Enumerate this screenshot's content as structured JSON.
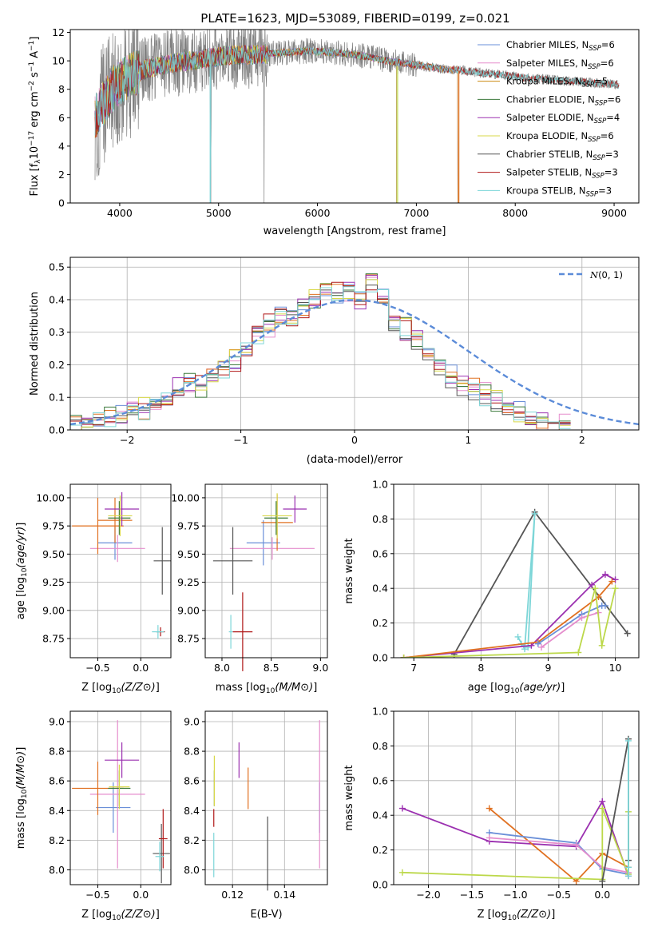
{
  "figure_title": "PLATE=1623, MJD=53089, FIBERID=0199, z=0.021",
  "colors": {
    "Chabrier MILES": "#6a8fd8",
    "Salpeter MILES": "#e58ecd",
    "Kroupa MILES": "#cc8a10",
    "Chabrier ELODIE": "#3c7a3c",
    "Salpeter ELODIE": "#9b30b0",
    "Kroupa ELODIE": "#d8d84a",
    "Chabrier STELIB": "#555555",
    "Salpeter STELIB": "#b01818",
    "Kroupa STELIB": "#7dd6d8",
    "data": "#808080",
    "gaussian": "#5b8bd8",
    "extra_orange": "#e07020",
    "extra_lime": "#bcd84a"
  },
  "chart_data": [
    {
      "id": "spectrum",
      "type": "line",
      "title": "PLATE=1623, MJD=53089, FIBERID=0199, z=0.021",
      "xlabel": "wavelength [Angstrom, rest frame]",
      "ylabel_parts": [
        "Flux [f",
        "λ",
        "10",
        "−17",
        " erg cm",
        "−2",
        " s",
        "−1",
        " A",
        "−1",
        "]"
      ],
      "xlim": [
        3500,
        9250
      ],
      "ylim": [
        0,
        12.2
      ],
      "xticks": [
        4000,
        5000,
        6000,
        7000,
        8000,
        9000
      ],
      "yticks": [
        0,
        2,
        4,
        6,
        8,
        10,
        12
      ],
      "continuum": {
        "x": [
          3750,
          3850,
          3950,
          4100,
          4300,
          4500,
          4700,
          4900,
          5100,
          5300,
          5500,
          5700,
          5900,
          6100,
          6300,
          6500,
          6700,
          6900,
          7100,
          7300,
          7500,
          7700,
          7900,
          8100,
          8300,
          8500,
          8700,
          8900,
          9050
        ],
        "y": [
          6.0,
          7.2,
          8.2,
          9.0,
          9.5,
          9.8,
          10.0,
          10.2,
          10.4,
          10.4,
          10.5,
          10.6,
          10.7,
          10.6,
          10.5,
          10.3,
          10.0,
          9.8,
          9.6,
          9.4,
          9.3,
          9.1,
          9.0,
          8.8,
          8.7,
          8.6,
          8.5,
          8.4,
          8.3
        ]
      },
      "legend": [
        {
          "name": "Chabrier MILES",
          "nssp": "6"
        },
        {
          "name": "Salpeter MILES",
          "nssp": "6"
        },
        {
          "name": "Kroupa MILES",
          "nssp": "5"
        },
        {
          "name": "Chabrier ELODIE",
          "nssp": "6"
        },
        {
          "name": "Salpeter ELODIE",
          "nssp": "4"
        },
        {
          "name": "Kroupa ELODIE",
          "nssp": "6"
        },
        {
          "name": "Chabrier STELIB",
          "nssp": "3"
        },
        {
          "name": "Salpeter STELIB",
          "nssp": "3"
        },
        {
          "name": "Kroupa STELIB",
          "nssp": "3"
        }
      ],
      "legend_prefix": "N",
      "legend_sub": "SSP",
      "legend_position": "top-right"
    },
    {
      "id": "residuals",
      "type": "line",
      "xlabel": "(data-model)/error",
      "ylabel": "Normed distribution",
      "xlim": [
        -2.5,
        2.5
      ],
      "ylim": [
        0,
        0.53
      ],
      "xticks": [
        -2,
        -1,
        0,
        1,
        2
      ],
      "yticks": [
        0.0,
        0.1,
        0.2,
        0.3,
        0.4,
        0.5
      ],
      "grid": true,
      "legend": [
        "N(0,1)"
      ],
      "legend_position": "top-right",
      "series_base": [
        0.018,
        0.022,
        0.032,
        0.038,
        0.045,
        0.05,
        0.065,
        0.08,
        0.105,
        0.125,
        0.145,
        0.135,
        0.155,
        0.185,
        0.215,
        0.245,
        0.3,
        0.32,
        0.355,
        0.34,
        0.38,
        0.4,
        0.425,
        0.42,
        0.43,
        0.405,
        0.46,
        0.41,
        0.33,
        0.31,
        0.28,
        0.25,
        0.205,
        0.165,
        0.14,
        0.125,
        0.11,
        0.09,
        0.068,
        0.055,
        0.04,
        0.03,
        0.022,
        0.018
      ],
      "bin_start": -2.5,
      "bin_width": 0.1
    },
    {
      "id": "z_age",
      "type": "scatter",
      "xlabel": "Z [log10(Z/Z⊙)]",
      "ylabel": "age [log10(age/yr)]",
      "xlim": [
        -0.82,
        0.35
      ],
      "ylim": [
        8.58,
        10.12
      ],
      "xticks": [
        -0.5,
        0.0
      ],
      "yticks": [
        8.75,
        9.0,
        9.25,
        9.5,
        9.75,
        10.0
      ],
      "points": [
        {
          "model": "Chabrier MILES",
          "x": -0.3,
          "y": 9.6,
          "xerr": 0.2,
          "yerr": 0.15
        },
        {
          "model": "Salpeter MILES",
          "x": -0.27,
          "y": 9.55,
          "xerr": 0.32,
          "yerr": 0.12
        },
        {
          "model": "extra_orange",
          "x": -0.5,
          "y": 9.75,
          "xerr": 0.3,
          "yerr": 0.25
        },
        {
          "model": "extra_orange",
          "x": -0.3,
          "y": 9.8,
          "xerr": 0.2,
          "yerr": 0.2
        },
        {
          "model": "Chabrier ELODIE",
          "x": -0.25,
          "y": 9.82,
          "xerr": 0.13,
          "yerr": 0.15
        },
        {
          "model": "Salpeter ELODIE",
          "x": -0.22,
          "y": 9.9,
          "xerr": 0.2,
          "yerr": 0.15
        },
        {
          "model": "Kroupa ELODIE",
          "x": -0.24,
          "y": 9.84,
          "xerr": 0.14,
          "yerr": 0.18
        },
        {
          "model": "Chabrier STELIB",
          "x": 0.25,
          "y": 9.44,
          "xerr": 0.1,
          "yerr": 0.3
        },
        {
          "model": "Salpeter STELIB",
          "x": 0.23,
          "y": 8.81,
          "xerr": 0.05,
          "yerr": 0.04
        },
        {
          "model": "Kroupa STELIB",
          "x": 0.2,
          "y": 8.81,
          "xerr": 0.07,
          "yerr": 0.06
        }
      ]
    },
    {
      "id": "mass_age",
      "type": "scatter",
      "xlabel": "mass [log10(M/M⊙)]",
      "ylabel": "",
      "xlim": [
        7.83,
        9.07
      ],
      "ylim": [
        8.58,
        10.12
      ],
      "xticks": [
        8.0,
        8.5,
        9.0
      ],
      "yticks": [
        8.75,
        9.0,
        9.25,
        9.5,
        9.75,
        10.0
      ],
      "points": [
        {
          "model": "Chabrier MILES",
          "x": 8.42,
          "y": 9.6,
          "xerr": 0.17,
          "yerr": 0.2
        },
        {
          "model": "Salpeter MILES",
          "x": 8.51,
          "y": 9.55,
          "xerr": 0.43,
          "yerr": 0.1
        },
        {
          "model": "extra_orange",
          "x": 8.56,
          "y": 9.78,
          "xerr": 0.16,
          "yerr": 0.25
        },
        {
          "model": "Chabrier ELODIE",
          "x": 8.55,
          "y": 9.82,
          "xerr": 0.12,
          "yerr": 0.15
        },
        {
          "model": "Salpeter ELODIE",
          "x": 8.74,
          "y": 9.9,
          "xerr": 0.12,
          "yerr": 0.12
        },
        {
          "model": "Kroupa ELODIE",
          "x": 8.56,
          "y": 9.84,
          "xerr": 0.15,
          "yerr": 0.2
        },
        {
          "model": "Chabrier STELIB",
          "x": 8.11,
          "y": 9.44,
          "xerr": 0.2,
          "yerr": 0.3
        },
        {
          "model": "Salpeter STELIB",
          "x": 8.21,
          "y": 8.81,
          "xerr": 0.1,
          "yerr": 0.35
        },
        {
          "model": "Kroupa STELIB",
          "x": 8.09,
          "y": 8.81,
          "xerr": 0.02,
          "yerr": 0.15
        }
      ]
    },
    {
      "id": "age_weight",
      "type": "line",
      "xlabel": "age [log10(age/yr)]",
      "ylabel": "mass weight",
      "xlim": [
        6.7,
        10.35
      ],
      "ylim": [
        0,
        1.0
      ],
      "xticks": [
        7,
        8,
        9,
        10
      ],
      "yticks": [
        0.0,
        0.2,
        0.4,
        0.6,
        0.8,
        1.0
      ],
      "grid": true,
      "series": [
        {
          "model": "Chabrier STELIB",
          "x": [
            7.6,
            8.8,
            10.18
          ],
          "y": [
            0.02,
            0.84,
            0.14
          ]
        },
        {
          "model": "Kroupa STELIB",
          "x": [
            8.55,
            8.65,
            8.8,
            8.7,
            8.6
          ],
          "y": [
            0.12,
            0.05,
            0.83,
            0.06,
            0.08
          ]
        },
        {
          "model": "Salpeter ELODIE",
          "x": [
            6.85,
            8.75,
            9.65,
            9.85,
            10.0
          ],
          "y": [
            0.0,
            0.07,
            0.42,
            0.48,
            0.45
          ]
        },
        {
          "model": "extra_orange",
          "x": [
            6.85,
            8.85,
            9.75,
            9.95
          ],
          "y": [
            0.0,
            0.09,
            0.35,
            0.44
          ]
        },
        {
          "model": "Chabrier MILES",
          "x": [
            8.85,
            9.5,
            9.8,
            9.85
          ],
          "y": [
            0.08,
            0.25,
            0.3,
            0.3
          ]
        },
        {
          "model": "Salpeter MILES",
          "x": [
            8.9,
            9.5,
            9.75
          ],
          "y": [
            0.06,
            0.23,
            0.26
          ]
        },
        {
          "model": "extra_lime",
          "x": [
            6.85,
            9.45,
            9.7,
            9.8,
            10.0
          ],
          "y": [
            0.0,
            0.03,
            0.4,
            0.07,
            0.4
          ]
        }
      ]
    },
    {
      "id": "z_mass",
      "type": "scatter",
      "xlabel": "Z [log10(Z/Z⊙)]",
      "ylabel": "mass [log10(M/M⊙)]",
      "xlim": [
        -0.82,
        0.35
      ],
      "ylim": [
        7.9,
        9.07
      ],
      "xticks": [
        -0.5,
        0.0
      ],
      "yticks": [
        8.0,
        8.2,
        8.4,
        8.6,
        8.8,
        9.0
      ],
      "points": [
        {
          "model": "Chabrier MILES",
          "x": -0.32,
          "y": 8.42,
          "xerr": 0.2,
          "yerr": 0.17
        },
        {
          "model": "Salpeter MILES",
          "x": -0.27,
          "y": 8.51,
          "xerr": 0.32,
          "yerr": 0.5
        },
        {
          "model": "extra_orange",
          "x": -0.5,
          "y": 8.55,
          "xerr": 0.3,
          "yerr": 0.18
        },
        {
          "model": "Chabrier ELODIE",
          "x": -0.25,
          "y": 8.55,
          "xerr": 0.13,
          "yerr": 0.12
        },
        {
          "model": "Salpeter ELODIE",
          "x": -0.22,
          "y": 8.74,
          "xerr": 0.2,
          "yerr": 0.12
        },
        {
          "model": "Kroupa ELODIE",
          "x": -0.25,
          "y": 8.56,
          "xerr": 0.12,
          "yerr": 0.15
        },
        {
          "model": "Chabrier STELIB",
          "x": 0.24,
          "y": 8.11,
          "xerr": 0.1,
          "yerr": 0.2
        },
        {
          "model": "Salpeter STELIB",
          "x": 0.26,
          "y": 8.21,
          "xerr": 0.05,
          "yerr": 0.2
        },
        {
          "model": "Kroupa STELIB",
          "x": 0.22,
          "y": 8.09,
          "xerr": 0.05,
          "yerr": 0.1
        }
      ]
    },
    {
      "id": "ebv_mass",
      "type": "scatter",
      "xlabel": "E(B-V)",
      "ylabel": "",
      "xlim": [
        0.1095,
        0.1565
      ],
      "ylim": [
        7.9,
        9.07
      ],
      "xticks": [
        0.12,
        0.14
      ],
      "yticks": [
        8.0,
        8.2,
        8.4,
        8.6,
        8.8,
        9.0
      ],
      "points": [
        {
          "model": "Chabrier MILES",
          "x": 0.1535,
          "y": 8.42,
          "xerr": 0,
          "yerr": 0.17
        },
        {
          "model": "Salpeter MILES",
          "x": 0.1535,
          "y": 8.51,
          "xerr": 0,
          "yerr": 0.5
        },
        {
          "model": "extra_orange",
          "x": 0.126,
          "y": 8.55,
          "xerr": 0,
          "yerr": 0.14
        },
        {
          "model": "Chabrier ELODIE",
          "x": 0.113,
          "y": 8.55,
          "xerr": 0,
          "yerr": 0.12
        },
        {
          "model": "Salpeter ELODIE",
          "x": 0.1225,
          "y": 8.74,
          "xerr": 0,
          "yerr": 0.12
        },
        {
          "model": "Kroupa ELODIE",
          "x": 0.113,
          "y": 8.6,
          "xerr": 0,
          "yerr": 0.17
        },
        {
          "model": "Chabrier STELIB",
          "x": 0.1335,
          "y": 8.11,
          "xerr": 0,
          "yerr": 0.25
        },
        {
          "model": "Salpeter STELIB",
          "x": 0.1128,
          "y": 8.35,
          "xerr": 0,
          "yerr": 0.06
        },
        {
          "model": "Kroupa STELIB",
          "x": 0.1128,
          "y": 8.1,
          "xerr": 0,
          "yerr": 0.15
        }
      ]
    },
    {
      "id": "z_weight",
      "type": "line",
      "xlabel": "Z [log10(Z/Z⊙)]",
      "ylabel": "mass weight",
      "xlim": [
        -2.4,
        0.42
      ],
      "ylim": [
        0,
        1.0
      ],
      "xticks": [
        -2.0,
        -1.5,
        -1.0,
        -0.5,
        0.0
      ],
      "yticks": [
        0.0,
        0.2,
        0.4,
        0.6,
        0.8,
        1.0
      ],
      "grid": true,
      "series": [
        {
          "model": "Salpeter ELODIE",
          "x": [
            -2.3,
            -1.3,
            -0.3,
            0.0,
            0.3
          ],
          "y": [
            0.44,
            0.25,
            0.22,
            0.48,
            0.05
          ]
        },
        {
          "model": "extra_orange",
          "x": [
            -1.3,
            -0.3,
            0.0,
            0.3
          ],
          "y": [
            0.44,
            0.02,
            0.18,
            0.1
          ]
        },
        {
          "model": "Chabrier MILES",
          "x": [
            -1.3,
            -0.3,
            0.0,
            0.3
          ],
          "y": [
            0.3,
            0.24,
            0.09,
            0.06
          ]
        },
        {
          "model": "Salpeter MILES",
          "x": [
            -1.3,
            -0.3,
            0.0,
            0.3
          ],
          "y": [
            0.27,
            0.23,
            0.1,
            0.07
          ]
        },
        {
          "model": "extra_lime",
          "x": [
            -2.3,
            0.0,
            0.0,
            0.3,
            0.3
          ],
          "y": [
            0.07,
            0.03,
            0.44,
            0.06,
            0.42
          ]
        },
        {
          "model": "Chabrier STELIB",
          "x": [
            0.0,
            0.3,
            0.3
          ],
          "y": [
            0.02,
            0.84,
            0.14
          ]
        },
        {
          "model": "Kroupa STELIB",
          "x": [
            0.3,
            0.3,
            0.3
          ],
          "y": [
            0.05,
            0.83,
            0.1
          ]
        }
      ]
    }
  ]
}
